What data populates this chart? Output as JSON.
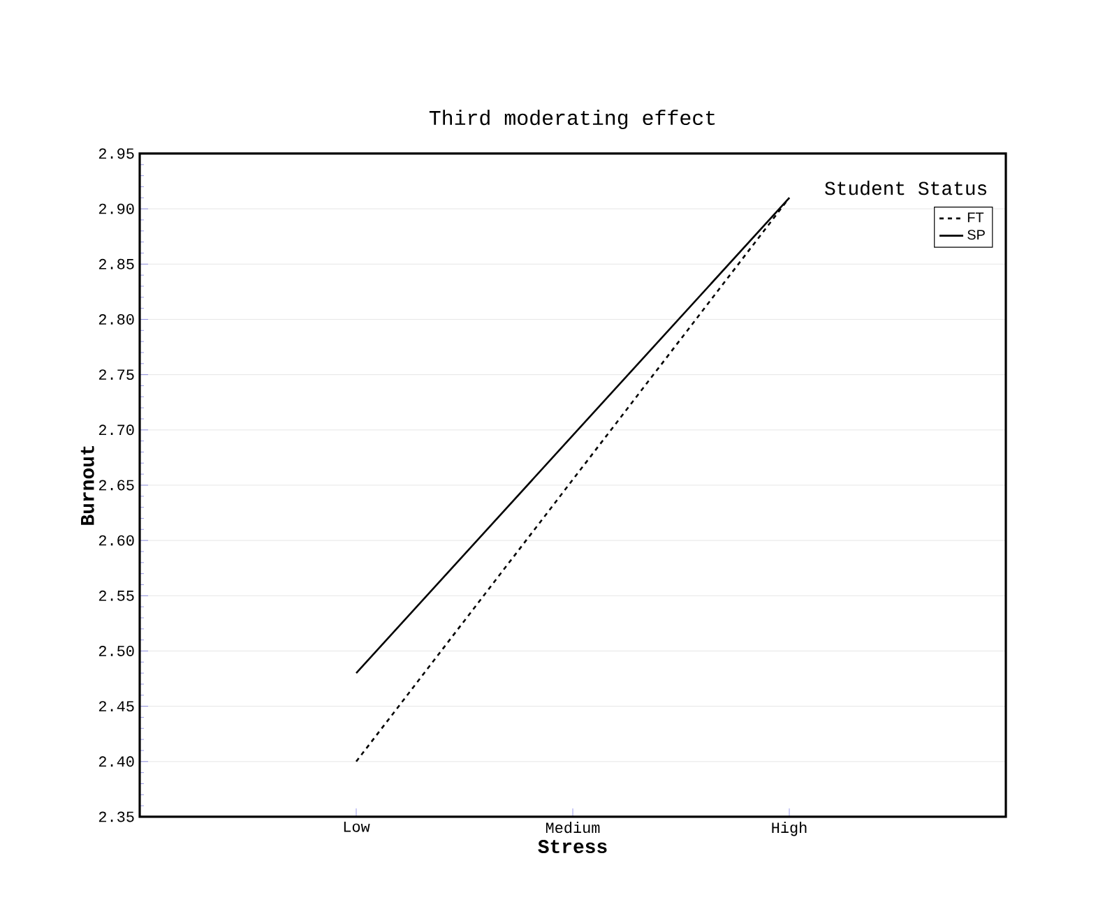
{
  "chart_data": {
    "type": "line",
    "title": "Third moderating effect",
    "xlabel": "Stress",
    "ylabel": "Burnout",
    "legend_title": "Student Status",
    "categories": [
      "Low",
      "Medium",
      "High"
    ],
    "series": [
      {
        "name": "FT",
        "color": "#000000",
        "line_style": "dashed",
        "values": [
          2.4,
          2.655,
          2.91
        ]
      },
      {
        "name": "SP",
        "color": "#000000",
        "line_style": "solid",
        "values": [
          2.48,
          2.695,
          2.91
        ]
      }
    ],
    "ylim": [
      2.35,
      2.95
    ],
    "yticks": [
      2.35,
      {
        "value": 2.4,
        "label": "2.40"
      },
      2.45,
      {
        "value": 2.5,
        "label": "2.50"
      },
      2.55,
      {
        "value": 2.6,
        "label": "2.60"
      },
      2.65,
      {
        "value": 2.7,
        "label": "2.70"
      },
      2.75,
      {
        "value": 2.8,
        "label": "2.80"
      },
      2.85,
      {
        "value": 2.9,
        "label": "2.90"
      },
      2.95
    ],
    "grid": "y",
    "legend": "top right"
  }
}
